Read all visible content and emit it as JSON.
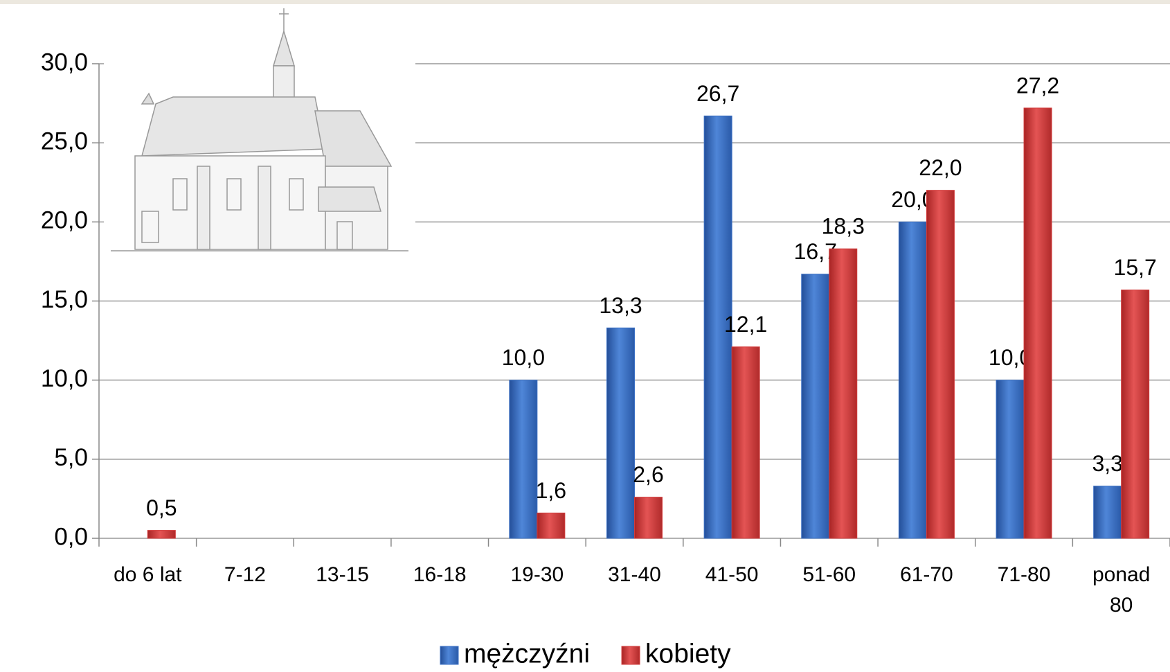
{
  "chart_data": {
    "type": "bar",
    "categories": [
      "do 6 lat",
      "7-12",
      "13-15",
      "16-18",
      "19-30",
      "31-40",
      "41-50",
      "51-60",
      "61-70",
      "71-80",
      "ponad 80"
    ],
    "series": [
      {
        "name": "mężczyźni",
        "color": "#3a6fc4",
        "values": [
          null,
          null,
          null,
          null,
          10.0,
          13.3,
          26.7,
          16.7,
          20.0,
          10.0,
          3.3
        ],
        "value_labels": [
          null,
          null,
          null,
          null,
          "10,0",
          "13,3",
          "26,7",
          "16,7",
          "20,0",
          "10,0",
          "3,3"
        ]
      },
      {
        "name": "kobiety",
        "color": "#d23b3b",
        "values": [
          0.5,
          null,
          null,
          null,
          1.6,
          2.6,
          12.1,
          18.3,
          22.0,
          27.2,
          15.7
        ],
        "value_labels": [
          "0,5",
          null,
          null,
          null,
          "1,6",
          "2,6",
          "12,1",
          "18,3",
          "22,0",
          "27,2",
          "15,7"
        ]
      }
    ],
    "ylim": [
      0,
      30
    ],
    "yticks": [
      {
        "value": 0,
        "label": "0,0"
      },
      {
        "value": 5,
        "label": "5,0"
      },
      {
        "value": 10,
        "label": "10,0"
      },
      {
        "value": 15,
        "label": "15,0"
      },
      {
        "value": 20,
        "label": "20,0"
      },
      {
        "value": 25,
        "label": "25,0"
      },
      {
        "value": 30,
        "label": "30,0"
      }
    ],
    "grid": true,
    "legend": "bottom"
  }
}
